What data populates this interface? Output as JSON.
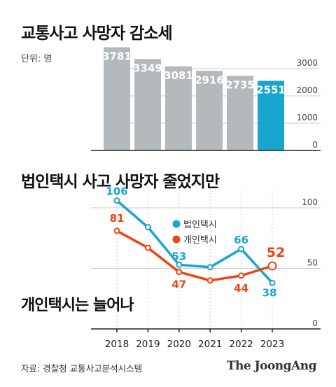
{
  "title": "교통사고 사망자 감소세",
  "unit": "단위: 명",
  "source": "자료: 경찰청 교통사고분석시스템",
  "brand": "The JoongAng",
  "colors": {
    "bar": "#b4b9bd",
    "bar_highlight": "#1aa5cf",
    "corporate": "#1aa5cf",
    "individual": "#ee4414",
    "axis": "#222222",
    "grid": "#cccccc"
  },
  "chart_data": [
    {
      "type": "bar",
      "title": "교통사고 사망자 감소세",
      "unit": "단위: 명",
      "categories": [
        "2018",
        "2019",
        "2020",
        "2021",
        "2022",
        "2023"
      ],
      "values": [
        3781,
        3349,
        3081,
        2916,
        2735,
        2551
      ],
      "highlight_index": 5,
      "yticks": [
        0,
        1000,
        2000,
        3000
      ],
      "ylim": [
        0,
        4000
      ]
    },
    {
      "type": "line",
      "title": "법인택시 사고 사망자 줄었지만",
      "subtitle": "개인택시는 늘어나",
      "categories": [
        "2018",
        "2019",
        "2020",
        "2021",
        "2022",
        "2023"
      ],
      "series": [
        {
          "name": "법인택시",
          "values": [
            106,
            84,
            53,
            51,
            66,
            38
          ],
          "labels": [
            "106",
            "",
            "53",
            "",
            "66",
            "38"
          ]
        },
        {
          "name": "개인택시",
          "values": [
            81,
            67,
            47,
            40,
            44,
            52
          ],
          "labels": [
            "81",
            "",
            "47",
            "",
            "44",
            "52"
          ]
        }
      ],
      "yticks": [
        0,
        50,
        100
      ],
      "ylim": [
        0,
        100
      ],
      "legend": "top-center"
    }
  ]
}
